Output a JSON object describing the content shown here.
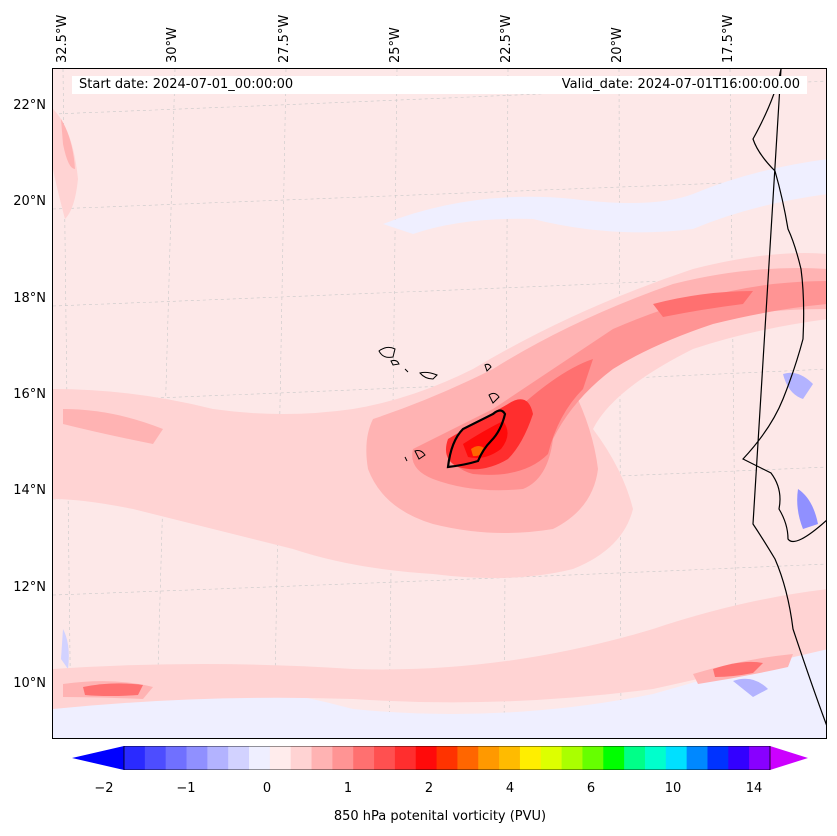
{
  "header": {
    "start_date": "Start date: 2024-07-01_00:00:00",
    "valid_date": "Valid_date: 2024-07-01T16:00:00.00"
  },
  "longitude_labels": [
    "32.5°W",
    "30°W",
    "27.5°W",
    "25°W",
    "22.5°W",
    "20°W",
    "17.5°W"
  ],
  "latitude_labels": [
    "22°N",
    "20°N",
    "18°N",
    "16°N",
    "14°N",
    "12°N",
    "10°N"
  ],
  "colorbar": {
    "title": "850 hPa potenital vorticity (PVU)",
    "tick_labels": [
      "−2",
      "−1",
      "0",
      "1",
      "2",
      "4",
      "6",
      "10",
      "14"
    ],
    "colors": [
      "#0000ff",
      "#2a2aff",
      "#4d4dff",
      "#7070ff",
      "#9090ff",
      "#b3b3ff",
      "#d2d2ff",
      "#efefff",
      "#ffecec",
      "#ffd3d3",
      "#ffb3b3",
      "#ff9494",
      "#ff7070",
      "#ff5050",
      "#ff2e2e",
      "#ff0a0a",
      "#ff3300",
      "#ff6600",
      "#ff9900",
      "#ffbb00",
      "#ffee00",
      "#ddff00",
      "#aaff00",
      "#66ff00",
      "#00ff00",
      "#00ff88",
      "#00ffcc",
      "#00e0ff",
      "#0088ff",
      "#0033ff",
      "#3300ff",
      "#8800ff",
      "#cc00ff"
    ]
  },
  "colors": {
    "background_field": "#fde8e8",
    "light_pink": "#ffd3d3",
    "pink": "#ffb3b3",
    "red_mid": "#ff7070",
    "red_strong": "#ff2e2e",
    "blue_light": "#efefff",
    "blue_mid": "#b3b3ff",
    "coast": "#000000"
  }
}
